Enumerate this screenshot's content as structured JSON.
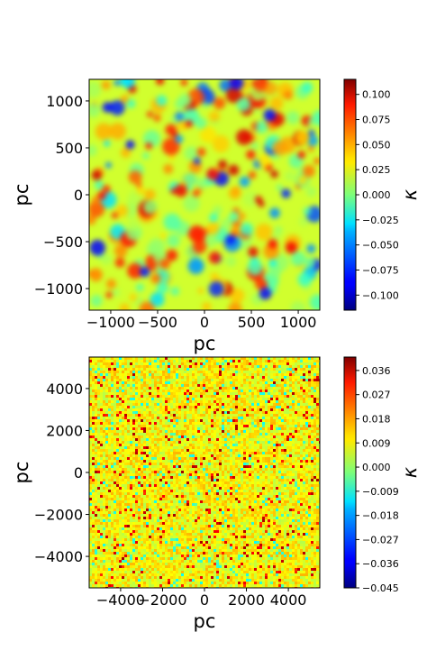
{
  "chart_data": [
    {
      "type": "heatmap",
      "xlabel": "pc",
      "ylabel": "pc",
      "xlim": [
        -1230,
        1230
      ],
      "ylim": [
        -1230,
        1230
      ],
      "xticks": [
        -1000,
        -500,
        0,
        500,
        1000
      ],
      "xtick_labels": [
        "−1000",
        "−500",
        "0",
        "500",
        "1000"
      ],
      "yticks": [
        1000,
        500,
        0,
        -500,
        -1000
      ],
      "ytick_labels": [
        "1000",
        "500",
        "0",
        "−500",
        "−1000"
      ],
      "colormap": "jet",
      "colorbar": {
        "label": "κ",
        "range": [
          -0.115,
          0.115
        ],
        "ticks": [
          0.1,
          0.075,
          0.05,
          0.025,
          0.0,
          -0.025,
          -0.05,
          -0.075,
          -0.1
        ],
        "tick_labels": [
          "0.100",
          "0.075",
          "0.050",
          "0.025",
          "0.000",
          "−0.025",
          "−0.050",
          "−0.075",
          "−0.100"
        ]
      },
      "texture": "smooth"
    },
    {
      "type": "heatmap",
      "xlabel": "pc",
      "ylabel": "pc",
      "xlim": [
        -5500,
        5500
      ],
      "ylim": [
        -5500,
        5500
      ],
      "xticks": [
        -4000,
        -2000,
        0,
        2000,
        4000
      ],
      "xtick_labels": [
        "−4000",
        "−2000",
        "0",
        "2000",
        "4000"
      ],
      "yticks": [
        4000,
        2000,
        0,
        -2000,
        -4000
      ],
      "ytick_labels": [
        "4000",
        "2000",
        "0",
        "−2000",
        "−4000"
      ],
      "colormap": "jet",
      "colorbar": {
        "label": "κ",
        "range": [
          -0.045,
          0.041
        ],
        "ticks": [
          0.036,
          0.027,
          0.018,
          0.009,
          0.0,
          -0.009,
          -0.018,
          -0.027,
          -0.036,
          -0.045
        ],
        "tick_labels": [
          "0.036",
          "0.027",
          "0.018",
          "0.009",
          "0.000",
          "−0.009",
          "−0.018",
          "−0.027",
          "−0.036",
          "−0.045"
        ]
      },
      "texture": "fine-grained"
    }
  ]
}
